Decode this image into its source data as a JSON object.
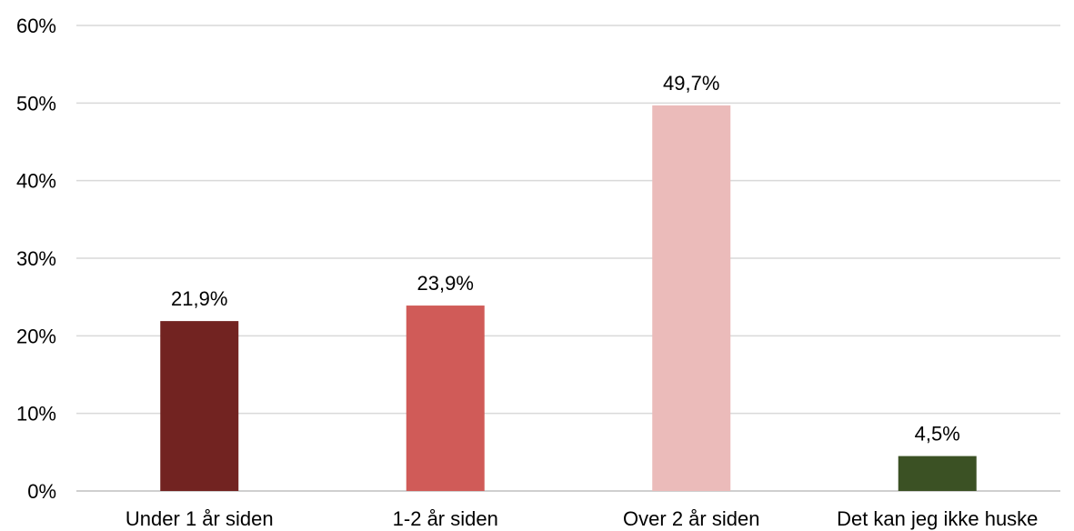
{
  "chart_data": {
    "type": "bar",
    "categories": [
      "Under 1 år siden",
      "1-2 år siden",
      "Over 2 år siden",
      "Det kan jeg ikke huske"
    ],
    "values": [
      21.9,
      23.9,
      49.7,
      4.5
    ],
    "value_labels": [
      "21,9%",
      "23,9%",
      "49,7%",
      "4,5%"
    ],
    "colors": [
      "#722321",
      "#d05b58",
      "#ebbbba",
      "#3b5124"
    ],
    "ylim": [
      0,
      60
    ],
    "yticks": [
      0,
      10,
      20,
      30,
      40,
      50,
      60
    ],
    "ytick_labels": [
      "0%",
      "10%",
      "20%",
      "30%",
      "40%",
      "50%",
      "60%"
    ],
    "title": "",
    "xlabel": "",
    "ylabel": "",
    "grid": true,
    "legend": "none"
  }
}
